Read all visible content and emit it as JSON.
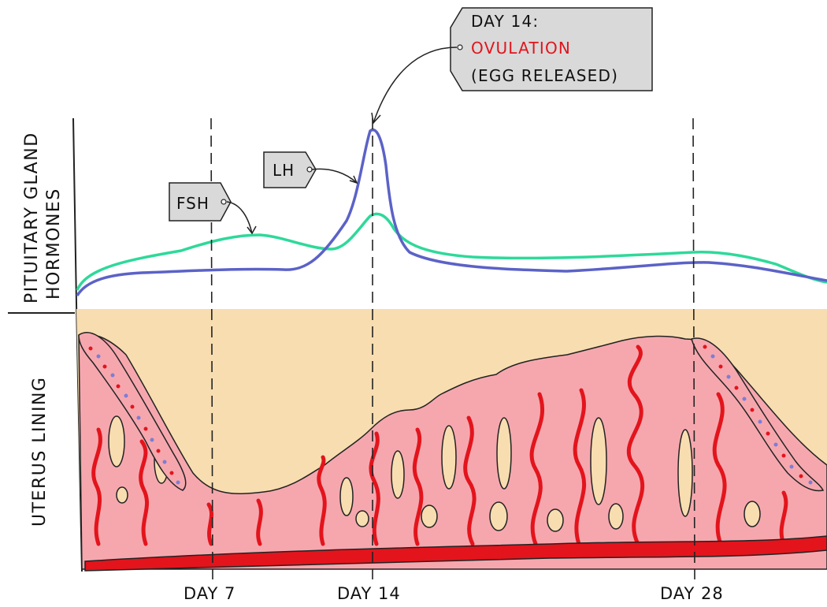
{
  "axes": {
    "hormones_label_line1": "PITUITARY GLAND",
    "hormones_label_line2": "HORMONES",
    "uterus_label": "UTERUS LINING"
  },
  "day_markers": [
    "DAY 7",
    "DAY 14",
    "DAY 28"
  ],
  "tags": {
    "fsh": "FSH",
    "lh": "LH"
  },
  "callout": {
    "line1": "DAY 14:",
    "line2": "OVULATION",
    "line3": "(EGG RELEASED)"
  },
  "colors": {
    "fsh_curve": "#2ed99a",
    "lh_curve": "#5b62c7",
    "background_band": "#f7ddb0",
    "uterus_tissue": "#f6a7ae",
    "blood_vessel": "#e3141c",
    "ovulation_text": "#e3141c",
    "tag_fill": "#d9d9d9"
  }
}
